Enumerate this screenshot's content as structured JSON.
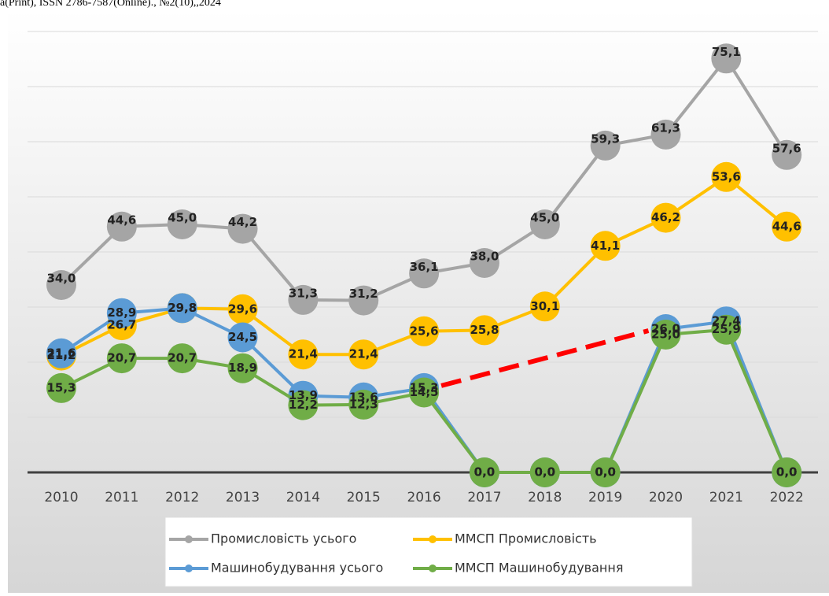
{
  "header": "а(Print), ISSN 2786-7587(Online)., №2(10),,2024",
  "chart_data": {
    "type": "line",
    "categories": [
      "2010",
      "2011",
      "2012",
      "2013",
      "2014",
      "2015",
      "2016",
      "2017",
      "2018",
      "2019",
      "2020",
      "2021",
      "2022"
    ],
    "ylim": [
      0,
      80
    ],
    "yticks": [
      0,
      10,
      20,
      30,
      40,
      50,
      60,
      70,
      80
    ],
    "grid": true,
    "legend": "bottom",
    "series": [
      {
        "name": "Промисловість усього",
        "color": "#a5a5a5",
        "values": [
          34.0,
          44.6,
          45.0,
          44.2,
          31.3,
          31.2,
          36.1,
          38.0,
          45.0,
          59.3,
          61.3,
          75.1,
          57.6
        ],
        "value_labels": [
          "34,0",
          "44,6",
          "45,0",
          "44,2",
          "31,3",
          "31,2",
          "36,1",
          "38,0",
          "45,0",
          "59,3",
          "61,3",
          "75,1",
          "57,6"
        ]
      },
      {
        "name": "ММСП Промисловість",
        "color": "#ffc000",
        "values": [
          21.2,
          26.7,
          29.8,
          29.6,
          21.4,
          21.4,
          25.6,
          25.8,
          30.1,
          41.1,
          46.2,
          53.6,
          44.6
        ],
        "value_labels": [
          "21,2",
          "26,7",
          "29,8",
          "29,6",
          "21,4",
          "21,4",
          "25,6",
          "25,8",
          "30,1",
          "41,1",
          "46,2",
          "53,6",
          "44,6"
        ]
      },
      {
        "name": "Машинобудування усього",
        "color": "#5b9bd5",
        "values": [
          21.6,
          28.9,
          29.8,
          24.5,
          13.9,
          13.6,
          15.3,
          0,
          0,
          0,
          26.0,
          27.4,
          0
        ],
        "value_labels": [
          "21,6",
          "28,9",
          "29,8",
          "24,5",
          "13,9",
          "13,6",
          "15,3",
          "0,0",
          "0,0",
          "0,0",
          "26,0",
          "27,4",
          "0,0"
        ]
      },
      {
        "name": "ММСП Машинобудування",
        "color": "#70ad47",
        "values": [
          15.3,
          20.7,
          20.7,
          18.9,
          12.2,
          12.3,
          14.5,
          0,
          0,
          0,
          25.0,
          25.9,
          0
        ],
        "value_labels": [
          "15,3",
          "20,7",
          "20,7",
          "18,9",
          "12,2",
          "12,3",
          "14,5",
          "0,0",
          "0,0",
          "0,0",
          "25,0",
          "25,9",
          "0,0"
        ]
      }
    ]
  }
}
